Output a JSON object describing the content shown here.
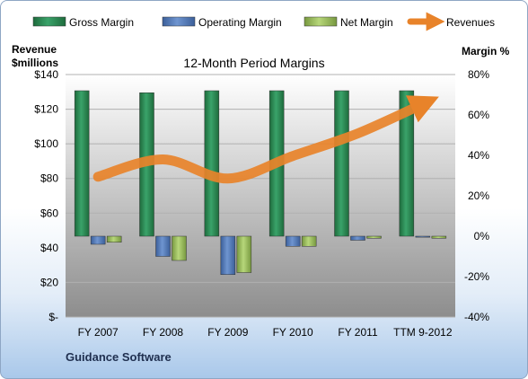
{
  "chart_data": {
    "type": "bar",
    "title": "12-Month Period Margins",
    "left_axis_title": [
      "Revenue",
      "$millions"
    ],
    "right_axis_title": "Margin %",
    "left_axis": {
      "min": 0,
      "max": 140,
      "step": 20,
      "tick_labels": [
        "$-",
        "$20",
        "$40",
        "$60",
        "$80",
        "$100",
        "$120",
        "$140"
      ]
    },
    "right_axis": {
      "min": -40,
      "max": 80,
      "step": 20,
      "tick_labels": [
        "-40%",
        "-20%",
        "0%",
        "20%",
        "40%",
        "60%",
        "80%"
      ]
    },
    "categories": [
      "FY 2007",
      "FY 2008",
      "FY 2009",
      "FY 2010",
      "FY 2011",
      "TTM 9-2012"
    ],
    "series": [
      {
        "name": "Gross Margin",
        "type": "bar",
        "axis": "right",
        "color": "#2e8b57",
        "values": [
          72,
          71,
          72,
          72,
          72,
          72
        ]
      },
      {
        "name": "Operating Margin",
        "type": "bar",
        "axis": "right",
        "color": "#4f78b8",
        "values": [
          -4,
          -10,
          -19,
          -5,
          -2,
          -0.5
        ]
      },
      {
        "name": "Net Margin",
        "type": "bar",
        "axis": "right",
        "color": "#97bb58",
        "values": [
          -3,
          -12,
          -18,
          -5,
          -1,
          -1
        ]
      },
      {
        "name": "Revenues",
        "type": "line",
        "axis": "left",
        "color": "#e8832a",
        "values": [
          81,
          91,
          80,
          93,
          106,
          123
        ]
      }
    ],
    "legend_position": "top",
    "grid": true
  },
  "footer": {
    "company": "Guidance Software"
  }
}
